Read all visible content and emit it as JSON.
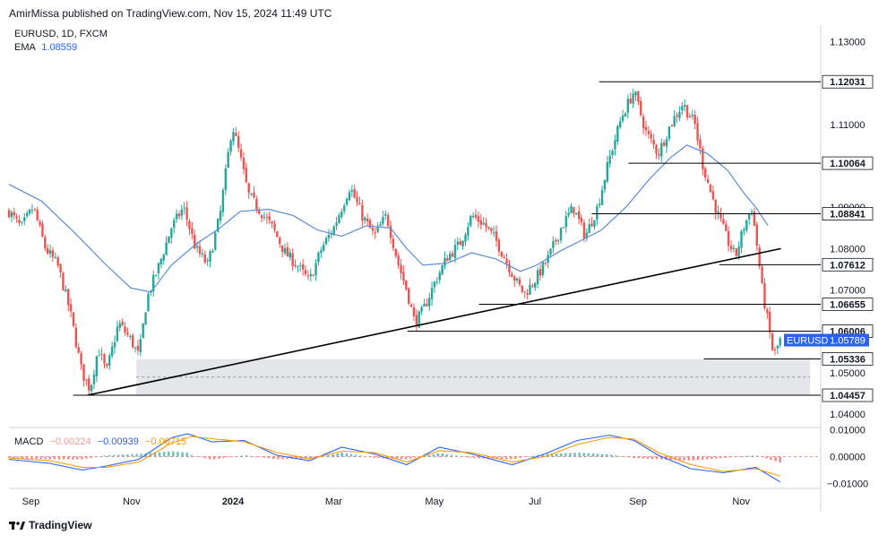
{
  "header": {
    "publisher": "AmirMissa published on TradingView.com, Nov 15, 2024 11:49 UTC"
  },
  "legend": {
    "symbol": "EURUSD, 1D, FXCM",
    "ema_label": "EMA",
    "ema_value": "1.08559"
  },
  "macd_legend": {
    "label": "MACD",
    "hist": "−0.00224",
    "macd": "−0.00939",
    "signal": "−0.00715"
  },
  "footer": {
    "brand": "TradingView"
  },
  "colors": {
    "up": "#26a69a",
    "down": "#ef5350",
    "ema": "#5b8bd6",
    "trendline": "#000000",
    "zone": "#e4e6ea",
    "axis_text": "#131722",
    "price_tag": "#2962ff",
    "macd_line": "#2962ff",
    "signal_line": "#ff9800"
  },
  "chart_data": [
    {
      "type": "candlestick",
      "symbol": "EURUSD",
      "timeframe": "1D",
      "y_ticks": [
        "1.13000",
        "1.11000",
        "1.09000",
        "1.08000",
        "1.07000",
        "1.05000",
        "1.04000"
      ],
      "x_ticks": [
        "Sep",
        "Nov",
        "2024",
        "Mar",
        "May",
        "Jul",
        "Sep",
        "Nov"
      ],
      "ylim": [
        1.037,
        1.134
      ],
      "current_price": {
        "label": "EURUSD",
        "value": "1.05789"
      },
      "levels": [
        {
          "value": 1.12031,
          "label": "1.12031",
          "from": 0.727,
          "to": 1.0
        },
        {
          "value": 1.10064,
          "label": "1.10064",
          "from": 0.763,
          "to": 1.0
        },
        {
          "value": 1.08841,
          "label": "1.08841",
          "from": 0.718,
          "to": 1.0
        },
        {
          "value": 1.07612,
          "label": "1.07612",
          "from": 0.875,
          "to": 1.0
        },
        {
          "value": 1.06655,
          "label": "1.06655",
          "from": 0.579,
          "to": 1.0
        },
        {
          "value": 1.06006,
          "label": "1.06006",
          "from": 0.491,
          "to": 1.0
        },
        {
          "value": 1.05336,
          "label": "1.05336",
          "from": 0.856,
          "to": 1.0
        },
        {
          "value": 1.04457,
          "label": "1.04457",
          "from": 0.079,
          "to": 1.0
        }
      ],
      "support_zone": {
        "top": 1.0533,
        "bottom": 1.0446
      },
      "trendline": {
        "from": [
          0.097,
          1.0446
        ],
        "to": [
          0.951,
          1.08
        ]
      },
      "ema_path": [
        [
          0.0,
          1.0955
        ],
        [
          0.04,
          1.0915
        ],
        [
          0.08,
          1.084
        ],
        [
          0.12,
          1.076
        ],
        [
          0.15,
          1.0705
        ],
        [
          0.175,
          1.0695
        ],
        [
          0.2,
          1.076
        ],
        [
          0.23,
          1.081
        ],
        [
          0.26,
          1.085
        ],
        [
          0.285,
          1.089
        ],
        [
          0.32,
          1.0895
        ],
        [
          0.35,
          1.088
        ],
        [
          0.38,
          1.0845
        ],
        [
          0.41,
          1.083
        ],
        [
          0.44,
          1.0855
        ],
        [
          0.47,
          1.085
        ],
        [
          0.49,
          1.08
        ],
        [
          0.51,
          1.076
        ],
        [
          0.54,
          1.0765
        ],
        [
          0.57,
          1.079
        ],
        [
          0.6,
          1.0775
        ],
        [
          0.63,
          1.0745
        ],
        [
          0.65,
          1.076
        ],
        [
          0.68,
          1.0795
        ],
        [
          0.7,
          1.0815
        ],
        [
          0.73,
          1.0845
        ],
        [
          0.76,
          1.09
        ],
        [
          0.79,
          1.097
        ],
        [
          0.815,
          1.102
        ],
        [
          0.835,
          1.105
        ],
        [
          0.86,
          1.103
        ],
        [
          0.885,
          1.099
        ],
        [
          0.905,
          1.0935
        ],
        [
          0.92,
          1.09
        ],
        [
          0.935,
          1.0856
        ]
      ],
      "close_path": [
        [
          0.0,
          1.089
        ],
        [
          0.015,
          1.085
        ],
        [
          0.03,
          1.09
        ],
        [
          0.045,
          1.08
        ],
        [
          0.06,
          1.076
        ],
        [
          0.075,
          1.065
        ],
        [
          0.09,
          1.05
        ],
        [
          0.1,
          1.046
        ],
        [
          0.11,
          1.056
        ],
        [
          0.12,
          1.05
        ],
        [
          0.135,
          1.062
        ],
        [
          0.15,
          1.058
        ],
        [
          0.16,
          1.054
        ],
        [
          0.17,
          1.068
        ],
        [
          0.185,
          1.076
        ],
        [
          0.2,
          1.085
        ],
        [
          0.215,
          1.09
        ],
        [
          0.23,
          1.08
        ],
        [
          0.245,
          1.076
        ],
        [
          0.26,
          1.088
        ],
        [
          0.275,
          1.11
        ],
        [
          0.285,
          1.102
        ],
        [
          0.295,
          1.093
        ],
        [
          0.31,
          1.089
        ],
        [
          0.325,
          1.085
        ],
        [
          0.34,
          1.079
        ],
        [
          0.355,
          1.076
        ],
        [
          0.37,
          1.072
        ],
        [
          0.385,
          1.08
        ],
        [
          0.4,
          1.085
        ],
        [
          0.42,
          1.095
        ],
        [
          0.435,
          1.088
        ],
        [
          0.45,
          1.083
        ],
        [
          0.465,
          1.088
        ],
        [
          0.48,
          1.076
        ],
        [
          0.49,
          1.07
        ],
        [
          0.5,
          1.062
        ],
        [
          0.51,
          1.065
        ],
        [
          0.525,
          1.072
        ],
        [
          0.54,
          1.078
        ],
        [
          0.555,
          1.081
        ],
        [
          0.57,
          1.088
        ],
        [
          0.585,
          1.086
        ],
        [
          0.6,
          1.082
        ],
        [
          0.615,
          1.076
        ],
        [
          0.625,
          1.072
        ],
        [
          0.635,
          1.069
        ],
        [
          0.65,
          1.073
        ],
        [
          0.665,
          1.078
        ],
        [
          0.68,
          1.085
        ],
        [
          0.695,
          1.09
        ],
        [
          0.71,
          1.083
        ],
        [
          0.725,
          1.09
        ],
        [
          0.74,
          1.102
        ],
        [
          0.755,
          1.112
        ],
        [
          0.77,
          1.118
        ],
        [
          0.785,
          1.108
        ],
        [
          0.8,
          1.103
        ],
        [
          0.815,
          1.11
        ],
        [
          0.83,
          1.115
        ],
        [
          0.845,
          1.11
        ],
        [
          0.855,
          1.1
        ],
        [
          0.87,
          1.09
        ],
        [
          0.885,
          1.082
        ],
        [
          0.895,
          1.078
        ],
        [
          0.905,
          1.085
        ],
        [
          0.915,
          1.09
        ],
        [
          0.922,
          1.08
        ],
        [
          0.928,
          1.07
        ],
        [
          0.935,
          1.062
        ],
        [
          0.942,
          1.054
        ],
        [
          0.95,
          1.0579
        ]
      ]
    },
    {
      "type": "line",
      "name": "MACD",
      "y_ticks": [
        "0.01000",
        "0.00000",
        "−0.01000"
      ],
      "ylim": [
        -0.0115,
        0.0105
      ],
      "series": [
        {
          "name": "macd",
          "color": "#2962ff",
          "points": [
            [
              0.0,
              -0.001
            ],
            [
              0.05,
              -0.0025
            ],
            [
              0.09,
              -0.005
            ],
            [
              0.12,
              -0.0035
            ],
            [
              0.16,
              -0.001
            ],
            [
              0.2,
              0.007
            ],
            [
              0.22,
              0.0085
            ],
            [
              0.25,
              0.0055
            ],
            [
              0.29,
              0.006
            ],
            [
              0.33,
              0.0005
            ],
            [
              0.37,
              -0.0015
            ],
            [
              0.41,
              0.0035
            ],
            [
              0.45,
              0.001
            ],
            [
              0.49,
              -0.003
            ],
            [
              0.53,
              0.0035
            ],
            [
              0.57,
              0.001
            ],
            [
              0.62,
              -0.003
            ],
            [
              0.66,
              0.001
            ],
            [
              0.7,
              0.006
            ],
            [
              0.74,
              0.008
            ],
            [
              0.77,
              0.006
            ],
            [
              0.8,
              0.0005
            ],
            [
              0.84,
              -0.0045
            ],
            [
              0.88,
              -0.006
            ],
            [
              0.92,
              -0.004
            ],
            [
              0.95,
              -0.0094
            ]
          ]
        },
        {
          "name": "signal",
          "color": "#ff9800",
          "points": [
            [
              0.0,
              -0.0005
            ],
            [
              0.05,
              -0.0015
            ],
            [
              0.09,
              -0.004
            ],
            [
              0.12,
              -0.004
            ],
            [
              0.16,
              -0.002
            ],
            [
              0.2,
              0.005
            ],
            [
              0.225,
              0.0075
            ],
            [
              0.255,
              0.0065
            ],
            [
              0.29,
              0.0055
            ],
            [
              0.33,
              0.0015
            ],
            [
              0.37,
              -0.0008
            ],
            [
              0.41,
              0.002
            ],
            [
              0.45,
              0.0015
            ],
            [
              0.49,
              -0.002
            ],
            [
              0.53,
              0.0022
            ],
            [
              0.57,
              0.0015
            ],
            [
              0.62,
              -0.002
            ],
            [
              0.66,
              0.0
            ],
            [
              0.7,
              0.0045
            ],
            [
              0.74,
              0.0072
            ],
            [
              0.77,
              0.0065
            ],
            [
              0.8,
              0.0015
            ],
            [
              0.84,
              -0.003
            ],
            [
              0.88,
              -0.0055
            ],
            [
              0.92,
              -0.0045
            ],
            [
              0.95,
              -0.0072
            ]
          ]
        }
      ],
      "histogram_color_up": "#26a69a",
      "histogram_color_down": "#ef5350"
    }
  ]
}
